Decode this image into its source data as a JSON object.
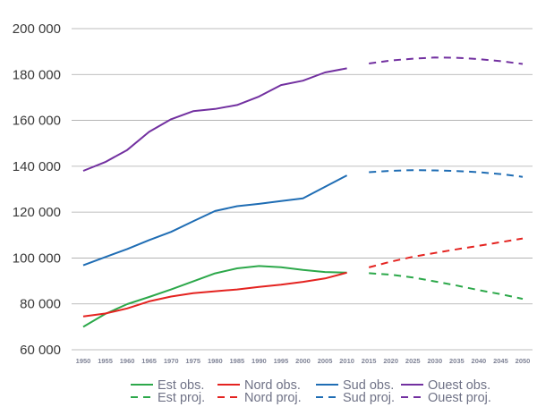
{
  "chart_data": {
    "type": "line",
    "title": "",
    "xlabel": "",
    "ylabel": "",
    "ylim": [
      60000,
      200000
    ],
    "xlim": [
      1950,
      2050
    ],
    "y_ticks": [
      60000,
      80000,
      100000,
      120000,
      140000,
      160000,
      180000,
      200000
    ],
    "y_tick_labels": [
      "60 000",
      "80 000",
      "100 000",
      "120 000",
      "140 000",
      "160 000",
      "180 000",
      "200 000"
    ],
    "x_ticks": [
      1950,
      1955,
      1960,
      1965,
      1970,
      1975,
      1980,
      1985,
      1990,
      1995,
      2000,
      2005,
      2010,
      2015,
      2020,
      2025,
      2030,
      2035,
      2040,
      2045,
      2050
    ],
    "x_tick_labels": [
      "1950",
      "1955",
      "1960",
      "1965",
      "1970",
      "1975",
      "1980",
      "1985",
      "1990",
      "1995",
      "2000",
      "2005",
      "2010",
      "2015",
      "2020",
      "2025",
      "2030",
      "2035",
      "2040",
      "2045",
      "2050"
    ],
    "grid": "horizontal",
    "legend_position": "bottom",
    "series": [
      {
        "name": "Est obs.",
        "color": "#2ca84a",
        "style": "solid",
        "x": [
          1950,
          1955,
          1960,
          1965,
          1970,
          1975,
          1980,
          1985,
          1990,
          1995,
          2000,
          2005,
          2010
        ],
        "y": [
          70000,
          75600,
          79900,
          83000,
          86300,
          89800,
          93300,
          95500,
          96500,
          96000,
          94800,
          93900,
          93600
        ]
      },
      {
        "name": "Nord obs.",
        "color": "#e42320",
        "style": "solid",
        "x": [
          1950,
          1955,
          1960,
          1965,
          1970,
          1975,
          1980,
          1985,
          1990,
          1995,
          2000,
          2005,
          2010
        ],
        "y": [
          74500,
          75800,
          78000,
          81100,
          83200,
          84700,
          85500,
          86300,
          87400,
          88400,
          89600,
          91100,
          93600
        ]
      },
      {
        "name": "Sud obs.",
        "color": "#1f6db4",
        "style": "solid",
        "x": [
          1950,
          1955,
          1960,
          1965,
          1970,
          1975,
          1980,
          1985,
          1990,
          1995,
          2000,
          2005,
          2010
        ],
        "y": [
          96800,
          100400,
          103900,
          107800,
          111400,
          116000,
          120500,
          122600,
          123600,
          124800,
          126000,
          131000,
          136000
        ]
      },
      {
        "name": "Ouest obs.",
        "color": "#7230a0",
        "style": "solid",
        "x": [
          1950,
          1955,
          1960,
          1965,
          1970,
          1975,
          1980,
          1985,
          1990,
          1995,
          2000,
          2005,
          2010
        ],
        "y": [
          138000,
          141800,
          147100,
          155000,
          160500,
          164000,
          165000,
          166700,
          170400,
          175400,
          177300,
          180900,
          182700
        ]
      },
      {
        "name": "Est proj.",
        "color": "#2ca84a",
        "style": "dashed",
        "x": [
          2015,
          2020,
          2025,
          2030,
          2035,
          2040,
          2045,
          2050
        ],
        "y": [
          93400,
          92700,
          91500,
          89800,
          88000,
          86000,
          84200,
          82200
        ]
      },
      {
        "name": "Nord proj.",
        "color": "#e42320",
        "style": "dashed",
        "x": [
          2015,
          2020,
          2025,
          2030,
          2035,
          2040,
          2045,
          2050
        ],
        "y": [
          95900,
          98400,
          100500,
          102200,
          103800,
          105300,
          106900,
          108500
        ]
      },
      {
        "name": "Sud proj.",
        "color": "#1f6db4",
        "style": "dashed",
        "x": [
          2015,
          2020,
          2025,
          2030,
          2035,
          2040,
          2045,
          2050
        ],
        "y": [
          137400,
          138000,
          138300,
          138200,
          137900,
          137400,
          136600,
          135400
        ]
      },
      {
        "name": "Ouest proj.",
        "color": "#7230a0",
        "style": "dashed",
        "x": [
          2015,
          2020,
          2025,
          2030,
          2035,
          2040,
          2045,
          2050
        ],
        "y": [
          184800,
          186100,
          186900,
          187400,
          187300,
          186700,
          185800,
          184600
        ]
      }
    ]
  }
}
